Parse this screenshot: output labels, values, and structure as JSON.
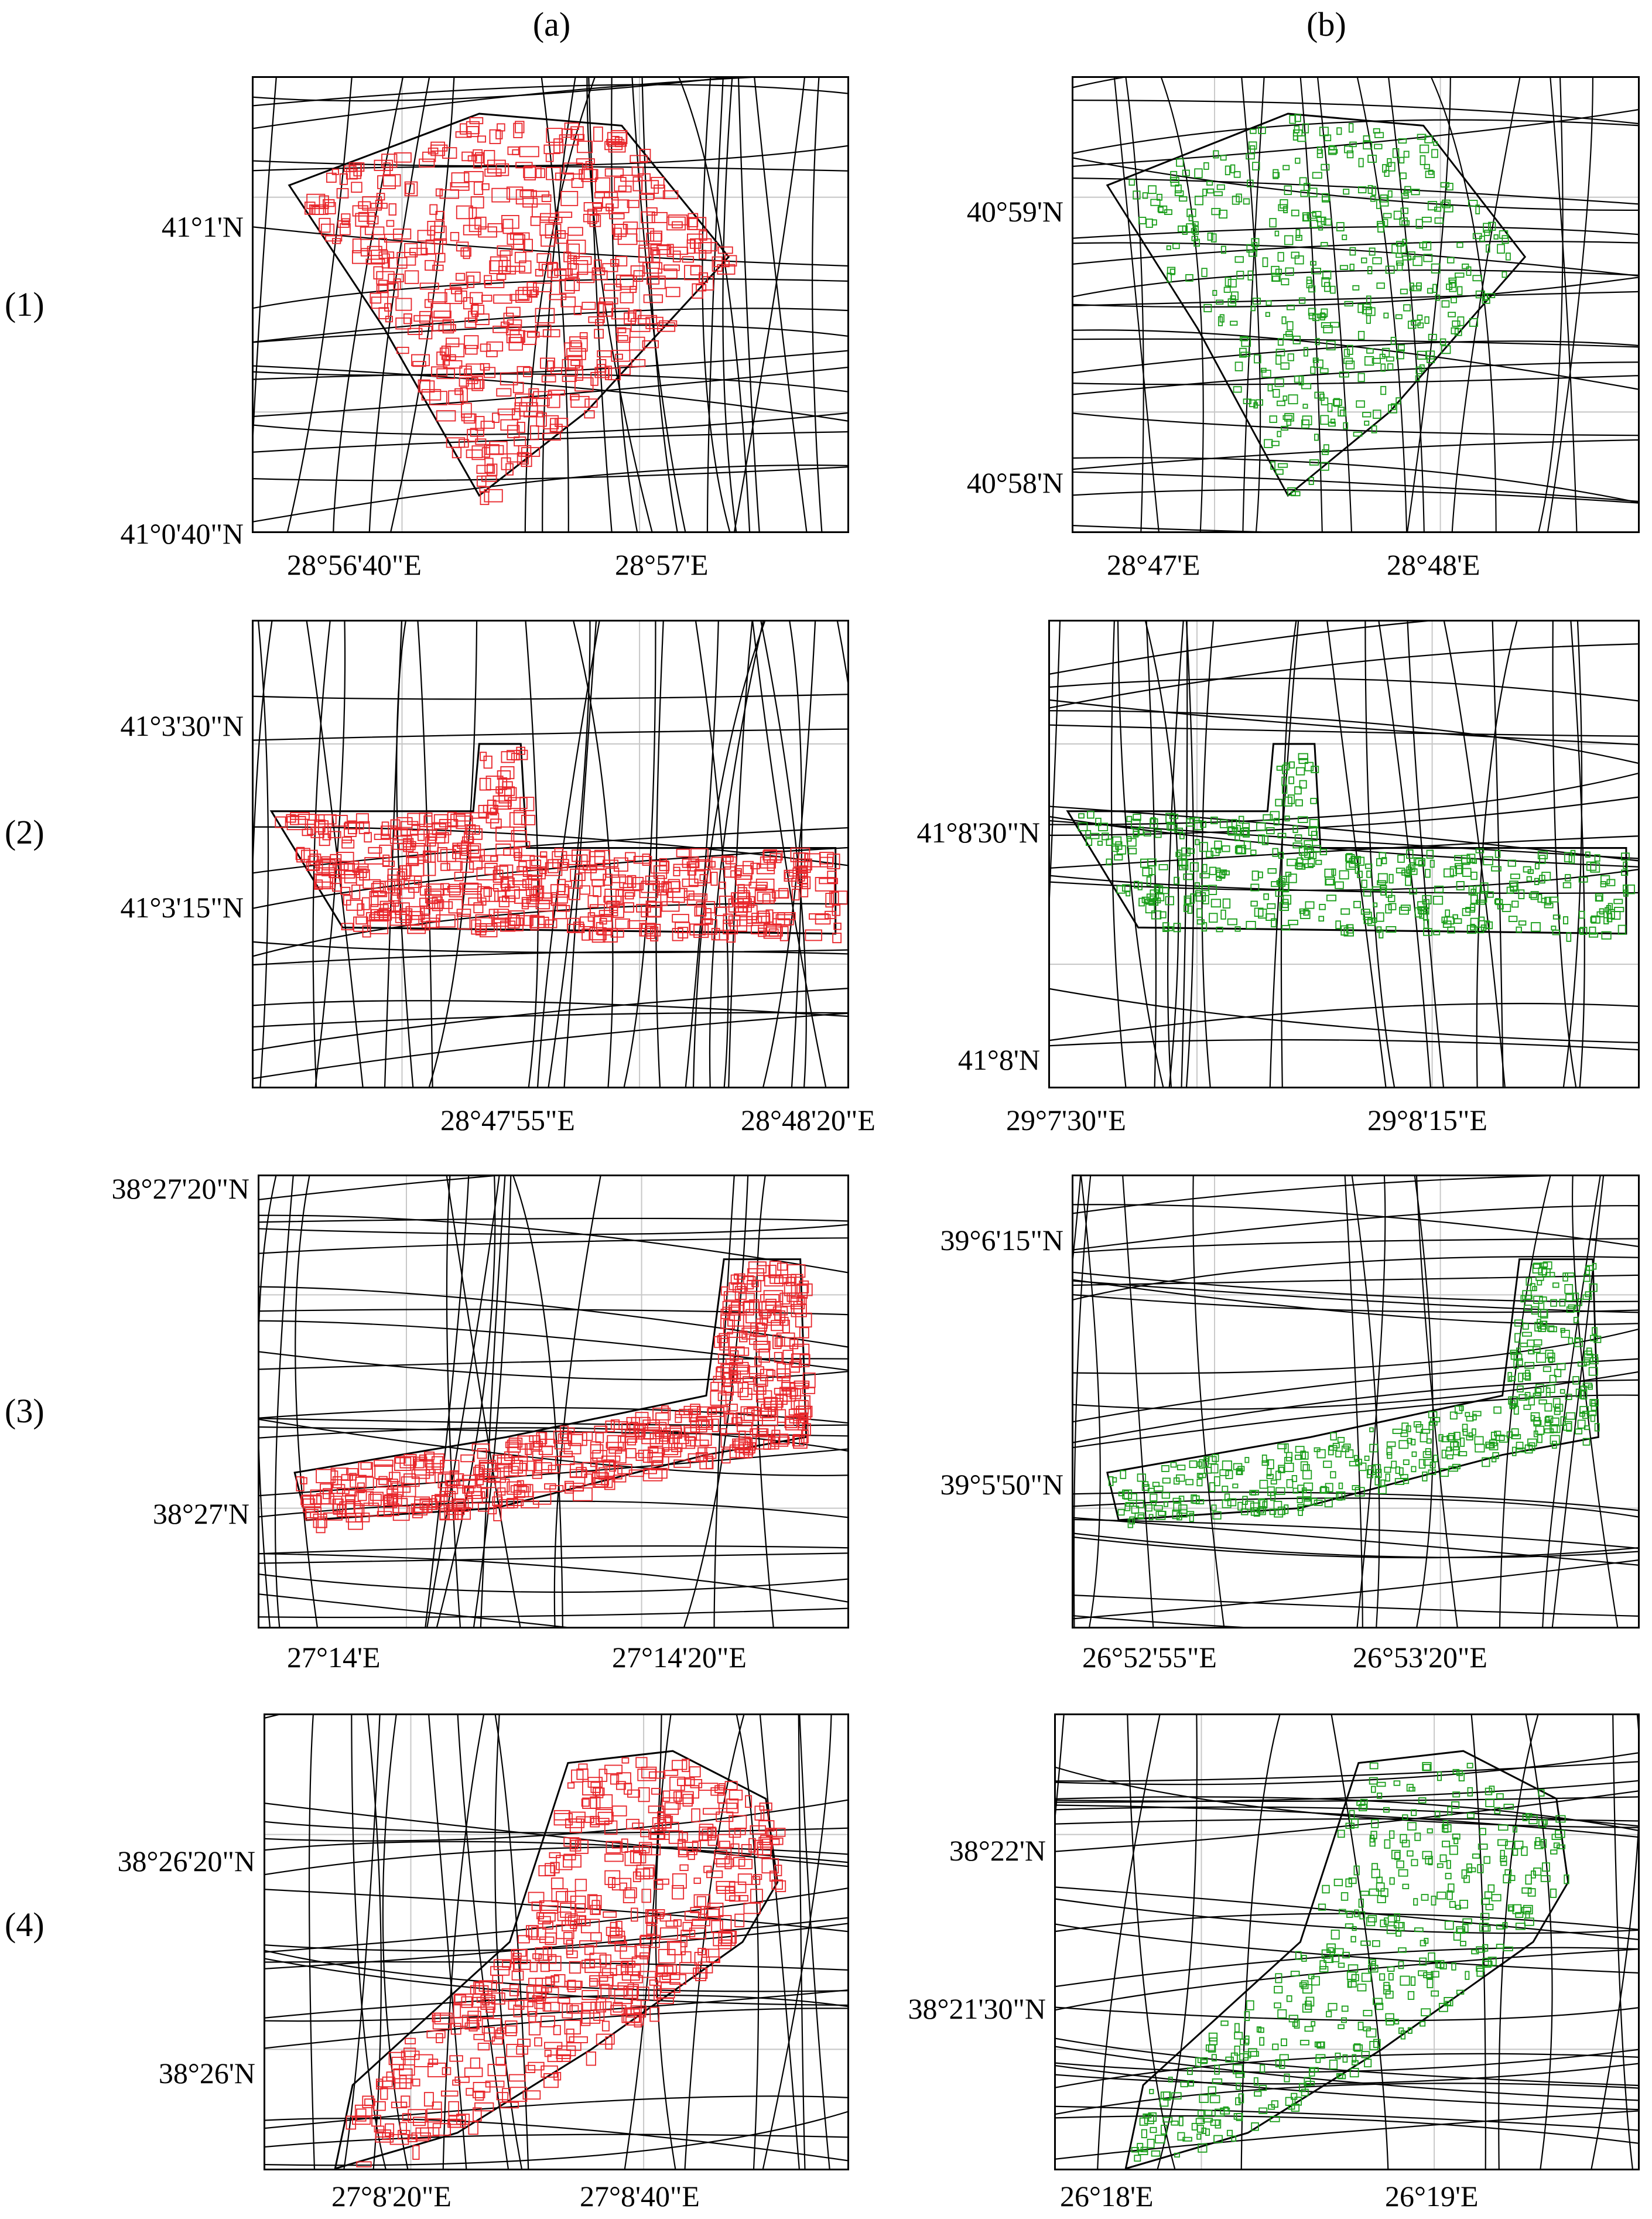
{
  "columns": [
    "(a)",
    "(b)"
  ],
  "rows": [
    "(1)",
    "(2)",
    "(3)",
    "(4)"
  ],
  "colors": {
    "buildings_a": "#e8262b",
    "buildings_b": "#1a9e1a",
    "roads": "#000000",
    "grid": "#c8c8c8"
  },
  "panels": [
    {
      "id": "1a",
      "lat_labels": [
        "41°1'N",
        "41°0'40\"N"
      ],
      "lon_labels": [
        "28°56'40\"E",
        "28°57'E"
      ]
    },
    {
      "id": "1b",
      "lat_labels": [
        "40°59'N",
        "40°58'N"
      ],
      "lon_labels": [
        "28°47'E",
        "28°48'E"
      ]
    },
    {
      "id": "2a",
      "lat_labels": [
        "41°3'30\"N",
        "41°3'15\"N"
      ],
      "lon_labels": [
        "28°47'55\"E",
        "28°48'20\"E"
      ]
    },
    {
      "id": "2b",
      "lat_labels": [
        "41°8'30\"N",
        "41°8'N"
      ],
      "lon_labels": [
        "29°7'30\"E",
        "29°8'15\"E"
      ]
    },
    {
      "id": "3a",
      "lat_labels": [
        "38°27'20\"N",
        "38°27'N"
      ],
      "lon_labels": [
        "27°14'E",
        "27°14'20\"E"
      ]
    },
    {
      "id": "3b",
      "lat_labels": [
        "39°6'15\"N",
        "39°5'50\"N"
      ],
      "lon_labels": [
        "26°52'55\"E",
        "26°53'20\"E"
      ]
    },
    {
      "id": "4a",
      "lat_labels": [
        "38°26'20\"N",
        "38°26'N"
      ],
      "lon_labels": [
        "27°8'20\"E",
        "27°8'40\"E"
      ]
    },
    {
      "id": "4b",
      "lat_labels": [
        "38°22'N",
        "38°21'30\"N"
      ],
      "lon_labels": [
        "26°18'E",
        "26°19'E"
      ]
    }
  ]
}
